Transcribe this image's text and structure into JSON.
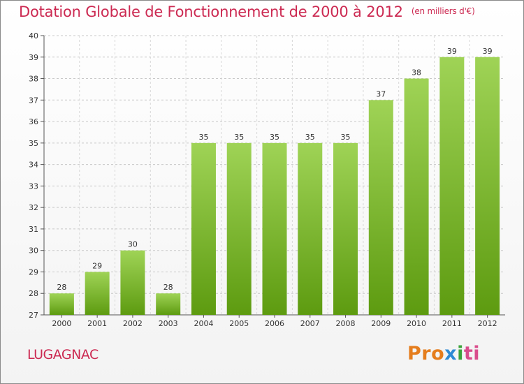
{
  "chart_data": {
    "type": "bar",
    "title": "Dotation Globale de Fonctionnement de 2000 à 2012",
    "unit_note": "(en milliers d'€)",
    "categories": [
      "2000",
      "2001",
      "2002",
      "2003",
      "2004",
      "2005",
      "2006",
      "2007",
      "2008",
      "2009",
      "2010",
      "2011",
      "2012"
    ],
    "values": [
      28,
      29,
      30,
      28,
      35,
      35,
      35,
      35,
      35,
      37,
      38,
      39,
      39
    ],
    "ylim": [
      27,
      40
    ],
    "yticks": [
      27,
      28,
      29,
      30,
      31,
      32,
      33,
      34,
      35,
      36,
      37,
      38,
      39,
      40
    ],
    "grid": true,
    "bar_color_top": "#9fd356",
    "bar_color_bottom": "#5d9b10"
  },
  "footer": {
    "place": "LUGAGNAC",
    "logo": {
      "part1": "Pro",
      "part2": "x",
      "part3": "i",
      "part4": "ti"
    }
  }
}
